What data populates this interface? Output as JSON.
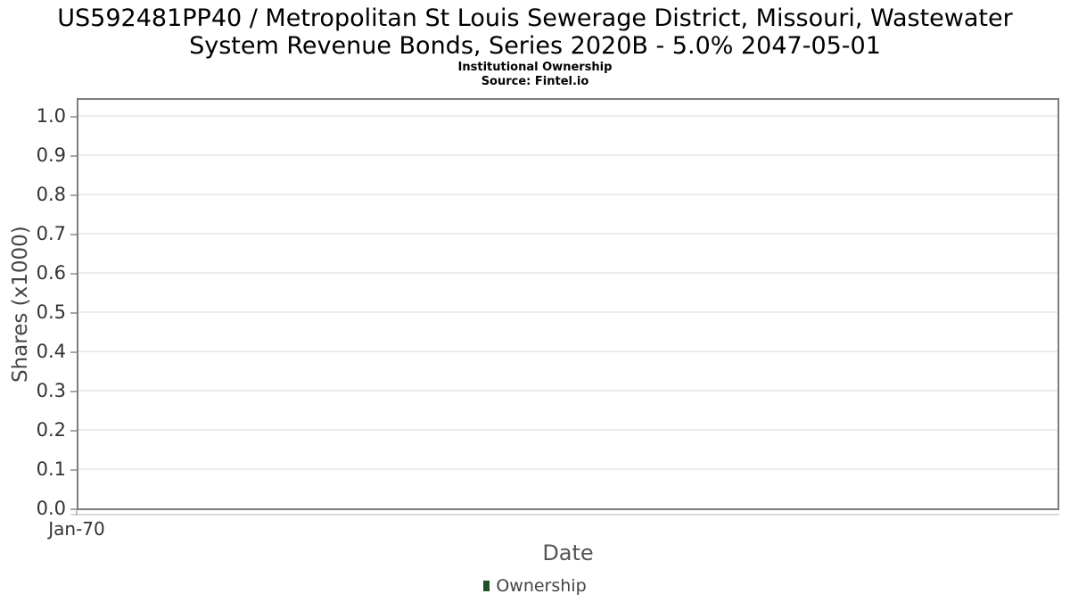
{
  "header": {
    "title_line1": "US592481PP40 / Metropolitan St Louis Sewerage District, Missouri, Wastewater",
    "title_line2": "System Revenue Bonds, Series 2020B - 5.0% 2047-05-01",
    "subtitle": "Institutional Ownership",
    "source": "Source: Fintel.io"
  },
  "chart_data": {
    "type": "line",
    "title": "US592481PP40 / Metropolitan St Louis Sewerage District, Missouri, Wastewater System Revenue Bonds, Series 2020B - 5.0% 2047-05-01",
    "subtitle": "Institutional Ownership",
    "source": "Source: Fintel.io",
    "xlabel": "Date",
    "ylabel": "Shares (x1000)",
    "x_ticks": [
      "Jan-70"
    ],
    "y_ticks": [
      "0.0",
      "0.1",
      "0.2",
      "0.3",
      "0.4",
      "0.5",
      "0.6",
      "0.7",
      "0.8",
      "0.9",
      "1.0"
    ],
    "ylim": [
      0,
      1.05
    ],
    "grid": true,
    "legend_position": "bottom",
    "series": [
      {
        "name": "Ownership",
        "color": "#1d5128",
        "x": [],
        "values": []
      }
    ]
  },
  "legend": {
    "items": [
      {
        "label": "Ownership",
        "color": "#1d5128"
      }
    ]
  },
  "colors": {
    "plot_border": "#7d7d7d",
    "gridline": "#ececec",
    "tick_label": "#333333",
    "axis_title": "#555555",
    "legend_marker": "#1d5128",
    "background": "#ffffff"
  }
}
